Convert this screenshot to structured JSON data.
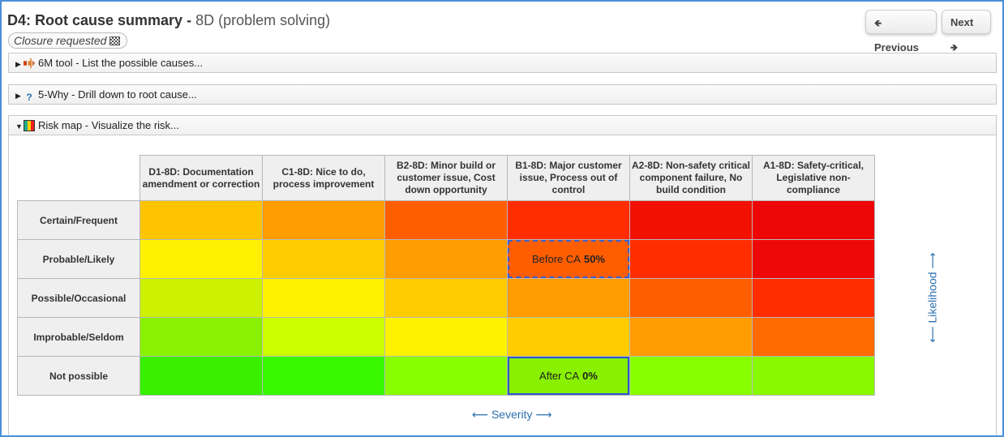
{
  "header": {
    "title_bold": "D4: Root cause summary -",
    "title_rest": "8D (problem solving)",
    "status": "Closure requested",
    "status_icon": "checkered-flag-icon",
    "prev_label": "Previous",
    "next_label": "Next"
  },
  "panels": [
    {
      "label": "6M tool - List the possible causes...",
      "icon": "fishbone-icon",
      "expanded": false
    },
    {
      "label": "5-Why - Drill down to root cause...",
      "icon": "question-icon",
      "expanded": false
    },
    {
      "label": "Risk map - Visualize the risk...",
      "icon": "risk-grid-icon",
      "expanded": true
    }
  ],
  "riskmap": {
    "columns": [
      "D1-8D: Documentation amendment or correction",
      "C1-8D: Nice to do, process improvement",
      "B2-8D: Minor build or customer issue, Cost down opportunity",
      "B1-8D: Major customer issue, Process out of control",
      "A2-8D: Non-safety critical component failure, No build condition",
      "A1-8D: Safety-critical, Legislative non-compliance"
    ],
    "rows": [
      {
        "label": "Certain/Frequent",
        "colors": [
          "#ffc400",
          "#ff9c00",
          "#ff5e00",
          "#ff2d00",
          "#f21000",
          "#ee0505"
        ]
      },
      {
        "label": "Probable/Likely",
        "colors": [
          "#fff200",
          "#ffcc00",
          "#ff9c00",
          "#ff5e00",
          "#ff2d00",
          "#ee0808"
        ]
      },
      {
        "label": "Possible/Occasional",
        "colors": [
          "#ccf200",
          "#fff200",
          "#ffcc00",
          "#ff9c00",
          "#ff5e00",
          "#ff2d00"
        ]
      },
      {
        "label": "Improbable/Seldom",
        "colors": [
          "#88f200",
          "#ccff00",
          "#fff200",
          "#ffcc00",
          "#ff9c00",
          "#ff6a00"
        ]
      },
      {
        "label": "Not possible",
        "colors": [
          "#38f000",
          "#38f800",
          "#88ff00",
          "#88f000",
          "#88ff00",
          "#88f800"
        ]
      }
    ],
    "before": {
      "label": "Before CA",
      "value": "50%",
      "row": 1,
      "col": 3
    },
    "after": {
      "label": "After CA",
      "value": "0%",
      "row": 4,
      "col": 3
    },
    "x_axis": "⟵ Severity ⟶",
    "y_axis": "⟵ Likelihood ⟶"
  }
}
